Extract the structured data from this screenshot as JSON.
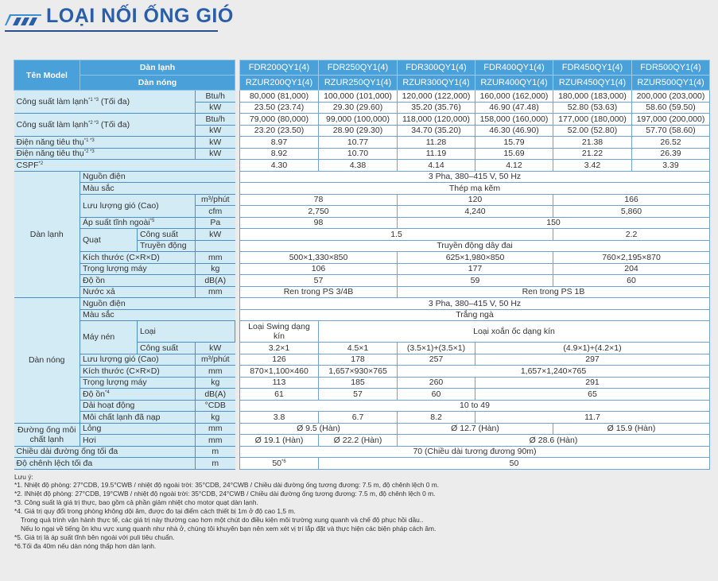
{
  "title": "LOẠI NỐI ỐNG GIÓ",
  "colors": {
    "header": "#4aa0d9",
    "label_bg": "#d3ebf4",
    "title": "#2b5ea8",
    "page_bg": "#ececec"
  },
  "header": {
    "model": "Tên Model",
    "indoor": "Dàn lạnh",
    "outdoor": "Dàn nóng",
    "indoor_models": [
      "FDR200QY1(4)",
      "FDR250QY1(4)",
      "FDR300QY1(4)",
      "FDR400QY1(4)",
      "FDR450QY1(4)",
      "FDR500QY1(4)"
    ],
    "outdoor_models": [
      "RZUR200QY1(4)",
      "RZUR250QY1(4)",
      "RZUR300QY1(4)",
      "RZUR400QY1(4)",
      "RZUR450QY1(4)",
      "RZUR500QY1(4)"
    ]
  },
  "rows": [
    {
      "label": "Công suất làm lạnh",
      "note": "*1 *3",
      "suffix": " (Tối đa)",
      "unit": "Btu/h",
      "values": [
        "80,000 (81,000)",
        "100,000 (101,000)",
        "120,000 (122,000)",
        "160,000 (162,000)",
        "180,000 (183,000)",
        "200,000 (203,000)"
      ]
    },
    {
      "unit": "kW",
      "values": [
        "23.50 (23.74)",
        "29.30 (29.60)",
        "35.20 (35.76)",
        "46.90 (47.48)",
        "52.80 (53.63)",
        "58.60 (59.50)"
      ]
    },
    {
      "label": "Công suất làm lạnh",
      "note": "*2 *3",
      "suffix": " (Tối đa)",
      "unit": "Btu/h",
      "values": [
        "79,000 (80,000)",
        "99,000 (100,000)",
        "118,000 (120,000)",
        "158,000 (160,000)",
        "177,000 (180,000)",
        "197,000 (200,000)"
      ]
    },
    {
      "unit": "kW",
      "values": [
        "23.20 (23.50)",
        "28.90 (29.30)",
        "34.70 (35.20)",
        "46.30 (46.90)",
        "52.00 (52.80)",
        "57.70 (58.60)"
      ]
    },
    {
      "label": "Điện năng tiêu thụ",
      "note": "*1 *3",
      "unit": "kW",
      "values": [
        "8.97",
        "10.77",
        "11.28",
        "15.79",
        "21.38",
        "26.52"
      ]
    },
    {
      "label": "Điện năng tiêu thụ",
      "note": "*2 *3",
      "unit": "kW",
      "values": [
        "8.92",
        "10.70",
        "11.19",
        "15.69",
        "21.22",
        "26.39"
      ]
    },
    {
      "label": "CSPF",
      "note": "*2",
      "values": [
        "4.30",
        "4.38",
        "4.14",
        "4.12",
        "3.42",
        "3.39"
      ]
    },
    {
      "group": "Dàn lạnh",
      "label": "Nguồn điện",
      "values": [
        "3 Pha, 380–415 V, 50 Hz"
      ]
    },
    {
      "label": "Màu sắc",
      "values": [
        "Thép mạ kẽm"
      ]
    },
    {
      "label": "Lưu lượng gió (Cao)",
      "unit": "m³/phút",
      "values": [
        "78",
        "120",
        "166"
      ]
    },
    {
      "unit": "cfm",
      "values": [
        "2,750",
        "4,240",
        "5,860"
      ]
    },
    {
      "label": "Áp suất tĩnh ngoài",
      "note": "*5",
      "unit": "Pa",
      "values": [
        "98",
        "150"
      ]
    },
    {
      "group": "Quạt",
      "label": "Công suất",
      "unit": "kW",
      "values": [
        "1.5",
        "2.2"
      ]
    },
    {
      "label": "Truyền động",
      "unit": "",
      "values": [
        "Truyền động dây đai"
      ]
    },
    {
      "label": "Kích thước (C×R×D)",
      "unit": "mm",
      "values": [
        "500×1,330×850",
        "625×1,980×850",
        "760×2,195×870"
      ]
    },
    {
      "label": "Trọng lượng máy",
      "unit": "kg",
      "values": [
        "106",
        "177",
        "204"
      ]
    },
    {
      "label": "Độ ồn",
      "unit": "dB(A)",
      "values": [
        "57",
        "59",
        "60"
      ]
    },
    {
      "label": "Nước xả",
      "unit": "mm",
      "values": [
        "Ren trong PS 3/4B",
        "Ren trong PS 1B"
      ]
    },
    {
      "group": "Dàn nóng",
      "label": "Nguồn điện",
      "values": [
        "3 Pha, 380–415 V, 50 Hz"
      ]
    },
    {
      "label": "Màu sắc",
      "values": [
        "Trắng ngà"
      ]
    },
    {
      "group": "Máy nén",
      "label": "Loại",
      "values": [
        "Loại Swing dạng kín",
        "Loại xoắn ốc dạng kín"
      ]
    },
    {
      "label": "Công suất",
      "unit": "kW",
      "values": [
        "3.2×1",
        "4.5×1",
        "(3.5×1)+(3.5×1)",
        "(4.9×1)+(4.2×1)"
      ]
    },
    {
      "label": "Lưu lượng gió (Cao)",
      "unit": "m³/phút",
      "values": [
        "126",
        "178",
        "257",
        "297"
      ]
    },
    {
      "label": "Kích thước (C×R×D)",
      "unit": "mm",
      "values": [
        "870×1,100×460",
        "1,657×930×765",
        "1,657×1,240×765"
      ]
    },
    {
      "label": "Trọng lượng máy",
      "unit": "kg",
      "values": [
        "113",
        "185",
        "260",
        "291"
      ]
    },
    {
      "label": "Độ ồn",
      "note": "*4",
      "unit": "dB(A)",
      "values": [
        "61",
        "57",
        "60",
        "65"
      ]
    },
    {
      "label": "Dải hoạt động",
      "unit": "°CDB",
      "values": [
        "10 to 49"
      ]
    },
    {
      "label": "Môi chất lạnh đã nạp",
      "unit": "kg",
      "values": [
        "3.8",
        "6.7",
        "8.2",
        "11.7"
      ]
    },
    {
      "group": "Đường ống môi chất lạnh",
      "label": "Lỏng",
      "unit": "mm",
      "values": [
        "Ø 9.5 (Hàn)",
        "Ø 12.7 (Hàn)",
        "Ø 15.9 (Hàn)"
      ]
    },
    {
      "label": "Hơi",
      "unit": "mm",
      "values": [
        "Ø 19.1 (Hàn)",
        "Ø 22.2 (Hàn)",
        "Ø 28.6 (Hàn)"
      ]
    },
    {
      "label": "Chiều dài đường ống tối đa",
      "unit": "m",
      "values": [
        "70 (Chiều dài tương đương 90m)"
      ]
    },
    {
      "label": "Độ chênh lệch tối đa",
      "unit": "m",
      "values": [
        "50",
        "50"
      ],
      "value_note": "*6"
    }
  ],
  "notes": {
    "heading": "Lưu ý:",
    "items": [
      "*1. Nhiệt độ phòng: 27°CDB, 19.5°CWB / nhiệt độ ngoài trời: 35°CDB, 24°CWB / Chiều dài đường ống tương đương: 7.5 m, độ chênh lệch 0 m.",
      "*2. INhiệt độ phòng: 27°CDB, 19°CWB / nhiệt độ ngoài trời: 35°CDB, 24°CWB / Chiều dài đường ống tương đương: 7.5 m, độ chênh lệch 0 m.",
      "*3. Công suất là giá trị thực, bao gồm cả phần giảm nhiệt cho motor quạt dàn lạnh.",
      "*4. Giá trị quy đổi trong phòng không dội âm, được đo tại điểm cách thiết bị 1m ở độ cao 1,5 m.",
      "Trong quá trình vận hành thực tế, các giá trị này thường cao hơn một chút do điều kiện môi trường xung quanh và chế độ phục hồi dầu..",
      "Nếu lo ngại về tiếng ồn khu vực xung quanh như nhà ở, chúng tôi khuyên bạn nên xem xét vị trí lắp đặt và thực hiện các biện pháp cách âm.",
      "*5. Giá trị là áp suất tĩnh bên ngoài với puli tiêu chuẩn.",
      "*6.Tối đa 40m nếu dàn nóng thấp hơn dàn lạnh."
    ]
  }
}
